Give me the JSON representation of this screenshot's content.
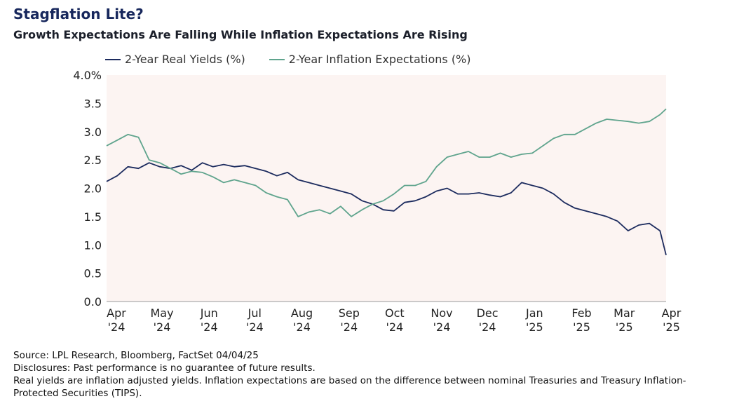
{
  "title": "Stagflation Lite?",
  "subtitle": "Growth Expectations Are Falling While Inflation Expectations Are Rising",
  "footer": {
    "source": "Source: LPL Research, Bloomberg, FactSet 04/04/25",
    "disclosure": "Disclosures: Past performance is no guarantee of future results.",
    "note": "Real yields are inflation adjusted yields. Inflation expectations are based on the difference between nominal Treasuries and Treasury Inflation-Protected Securities (TIPS)."
  },
  "colors": {
    "real": "#1c2b5e",
    "inflation": "#5fa48d",
    "plot_bg": "#fcf4f2"
  },
  "chart_data": {
    "type": "line",
    "ylim": [
      0,
      4
    ],
    "yticks": [
      "4.0%",
      "3.5",
      "3.0",
      "2.5",
      "2.0",
      "1.5",
      "1.0",
      "0.5",
      "0.0"
    ],
    "ytick_values": [
      4.0,
      3.5,
      3.0,
      2.5,
      2.0,
      1.5,
      1.0,
      0.5,
      0.0
    ],
    "x_start": "2024-04-01",
    "x_end": "2025-04-04",
    "xticks": [
      {
        "m": "Apr",
        "y": "'24",
        "date": "2024-04-01"
      },
      {
        "m": "May",
        "y": "'24",
        "date": "2024-05-01"
      },
      {
        "m": "Jun",
        "y": "'24",
        "date": "2024-06-01"
      },
      {
        "m": "Jul",
        "y": "'24",
        "date": "2024-07-01"
      },
      {
        "m": "Aug",
        "y": "'24",
        "date": "2024-08-01"
      },
      {
        "m": "Sep",
        "y": "'24",
        "date": "2024-09-01"
      },
      {
        "m": "Oct",
        "y": "'24",
        "date": "2024-10-01"
      },
      {
        "m": "Nov",
        "y": "'24",
        "date": "2024-11-01"
      },
      {
        "m": "Dec",
        "y": "'24",
        "date": "2024-12-01"
      },
      {
        "m": "Jan",
        "y": "'25",
        "date": "2025-01-01"
      },
      {
        "m": "Feb",
        "y": "'25",
        "date": "2025-02-01"
      },
      {
        "m": "Mar",
        "y": "'25",
        "date": "2025-03-01"
      },
      {
        "m": "Apr",
        "y": "'25",
        "date": "2025-04-01"
      }
    ],
    "grid": false,
    "legend": "top-left",
    "series": [
      {
        "name": "2-Year Real Yields (%)",
        "x": [
          "2024-04-01",
          "2024-04-08",
          "2024-04-15",
          "2024-04-22",
          "2024-04-29",
          "2024-05-06",
          "2024-05-13",
          "2024-05-20",
          "2024-05-27",
          "2024-06-03",
          "2024-06-10",
          "2024-06-17",
          "2024-06-24",
          "2024-07-01",
          "2024-07-08",
          "2024-07-15",
          "2024-07-22",
          "2024-07-29",
          "2024-08-05",
          "2024-08-12",
          "2024-08-19",
          "2024-08-26",
          "2024-09-02",
          "2024-09-09",
          "2024-09-16",
          "2024-09-23",
          "2024-09-30",
          "2024-10-07",
          "2024-10-14",
          "2024-10-21",
          "2024-10-28",
          "2024-11-04",
          "2024-11-11",
          "2024-11-18",
          "2024-11-25",
          "2024-12-02",
          "2024-12-09",
          "2024-12-16",
          "2024-12-23",
          "2024-12-30",
          "2025-01-06",
          "2025-01-13",
          "2025-01-20",
          "2025-01-27",
          "2025-02-03",
          "2025-02-10",
          "2025-02-17",
          "2025-02-24",
          "2025-03-03",
          "2025-03-10",
          "2025-03-17",
          "2025-03-24",
          "2025-03-31",
          "2025-04-04"
        ],
        "values": [
          2.12,
          2.22,
          2.38,
          2.35,
          2.45,
          2.38,
          2.35,
          2.4,
          2.32,
          2.45,
          2.38,
          2.42,
          2.38,
          2.4,
          2.35,
          2.3,
          2.22,
          2.28,
          2.15,
          2.1,
          2.05,
          2.0,
          1.95,
          1.9,
          1.78,
          1.72,
          1.62,
          1.6,
          1.75,
          1.78,
          1.85,
          1.95,
          2.0,
          1.9,
          1.9,
          1.92,
          1.88,
          1.85,
          1.92,
          2.1,
          2.05,
          2.0,
          1.9,
          1.75,
          1.65,
          1.6,
          1.55,
          1.5,
          1.42,
          1.25,
          1.35,
          1.38,
          1.25,
          0.82
        ]
      },
      {
        "name": "2-Year Inflation Expectations (%)",
        "x": [
          "2024-04-01",
          "2024-04-08",
          "2024-04-15",
          "2024-04-22",
          "2024-04-29",
          "2024-05-06",
          "2024-05-13",
          "2024-05-20",
          "2024-05-27",
          "2024-06-03",
          "2024-06-10",
          "2024-06-17",
          "2024-06-24",
          "2024-07-01",
          "2024-07-08",
          "2024-07-15",
          "2024-07-22",
          "2024-07-29",
          "2024-08-05",
          "2024-08-12",
          "2024-08-19",
          "2024-08-26",
          "2024-09-02",
          "2024-09-09",
          "2024-09-16",
          "2024-09-23",
          "2024-09-30",
          "2024-10-07",
          "2024-10-14",
          "2024-10-21",
          "2024-10-28",
          "2024-11-04",
          "2024-11-11",
          "2024-11-18",
          "2024-11-25",
          "2024-12-02",
          "2024-12-09",
          "2024-12-16",
          "2024-12-23",
          "2024-12-30",
          "2025-01-06",
          "2025-01-13",
          "2025-01-20",
          "2025-01-27",
          "2025-02-03",
          "2025-02-10",
          "2025-02-17",
          "2025-02-24",
          "2025-03-03",
          "2025-03-10",
          "2025-03-17",
          "2025-03-24",
          "2025-03-31",
          "2025-04-04"
        ],
        "values": [
          2.75,
          2.85,
          2.95,
          2.9,
          2.5,
          2.45,
          2.35,
          2.25,
          2.3,
          2.28,
          2.2,
          2.1,
          2.15,
          2.1,
          2.05,
          1.92,
          1.85,
          1.8,
          1.5,
          1.58,
          1.62,
          1.55,
          1.68,
          1.5,
          1.62,
          1.72,
          1.78,
          1.9,
          2.05,
          2.05,
          2.12,
          2.38,
          2.55,
          2.6,
          2.65,
          2.55,
          2.55,
          2.62,
          2.55,
          2.6,
          2.62,
          2.75,
          2.88,
          2.95,
          2.95,
          3.05,
          3.15,
          3.22,
          3.2,
          3.18,
          3.15,
          3.18,
          3.3,
          3.4
        ]
      }
    ]
  }
}
